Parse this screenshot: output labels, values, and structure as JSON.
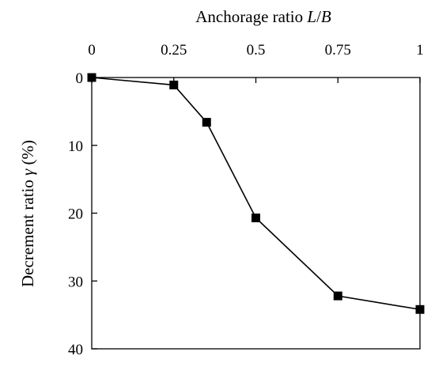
{
  "chart_data": {
    "type": "line",
    "xlabel": "Anchorage ratio L/B",
    "xlabel_parts": {
      "text": "Anchorage ratio ",
      "var_L": "L",
      "slash": "/",
      "var_B": "B"
    },
    "ylabel": "Decrement ratio γ (%)",
    "ylabel_parts": {
      "text": "Decrement ratio ",
      "var": "γ",
      "unit": " (%)"
    },
    "xlim": [
      0,
      1
    ],
    "ylim": [
      0,
      40
    ],
    "y_inverted": true,
    "x_axis_position": "top",
    "x_ticks": [
      {
        "value": 0,
        "label": "0"
      },
      {
        "value": 0.25,
        "label": "0.25"
      },
      {
        "value": 0.5,
        "label": "0.5"
      },
      {
        "value": 0.75,
        "label": "0.75"
      },
      {
        "value": 1,
        "label": "1"
      }
    ],
    "y_ticks": [
      {
        "value": 0,
        "label": "0"
      },
      {
        "value": 10,
        "label": "10"
      },
      {
        "value": 20,
        "label": "20"
      },
      {
        "value": 30,
        "label": "30"
      },
      {
        "value": 40,
        "label": "40"
      }
    ],
    "grid": false,
    "marker": "square",
    "color": "#000000",
    "series": [
      {
        "x": [
          0,
          0.25,
          0.35,
          0.5,
          0.75,
          1.0
        ],
        "y": [
          0,
          1.1,
          6.6,
          20.7,
          32.2,
          34.2
        ]
      }
    ]
  }
}
